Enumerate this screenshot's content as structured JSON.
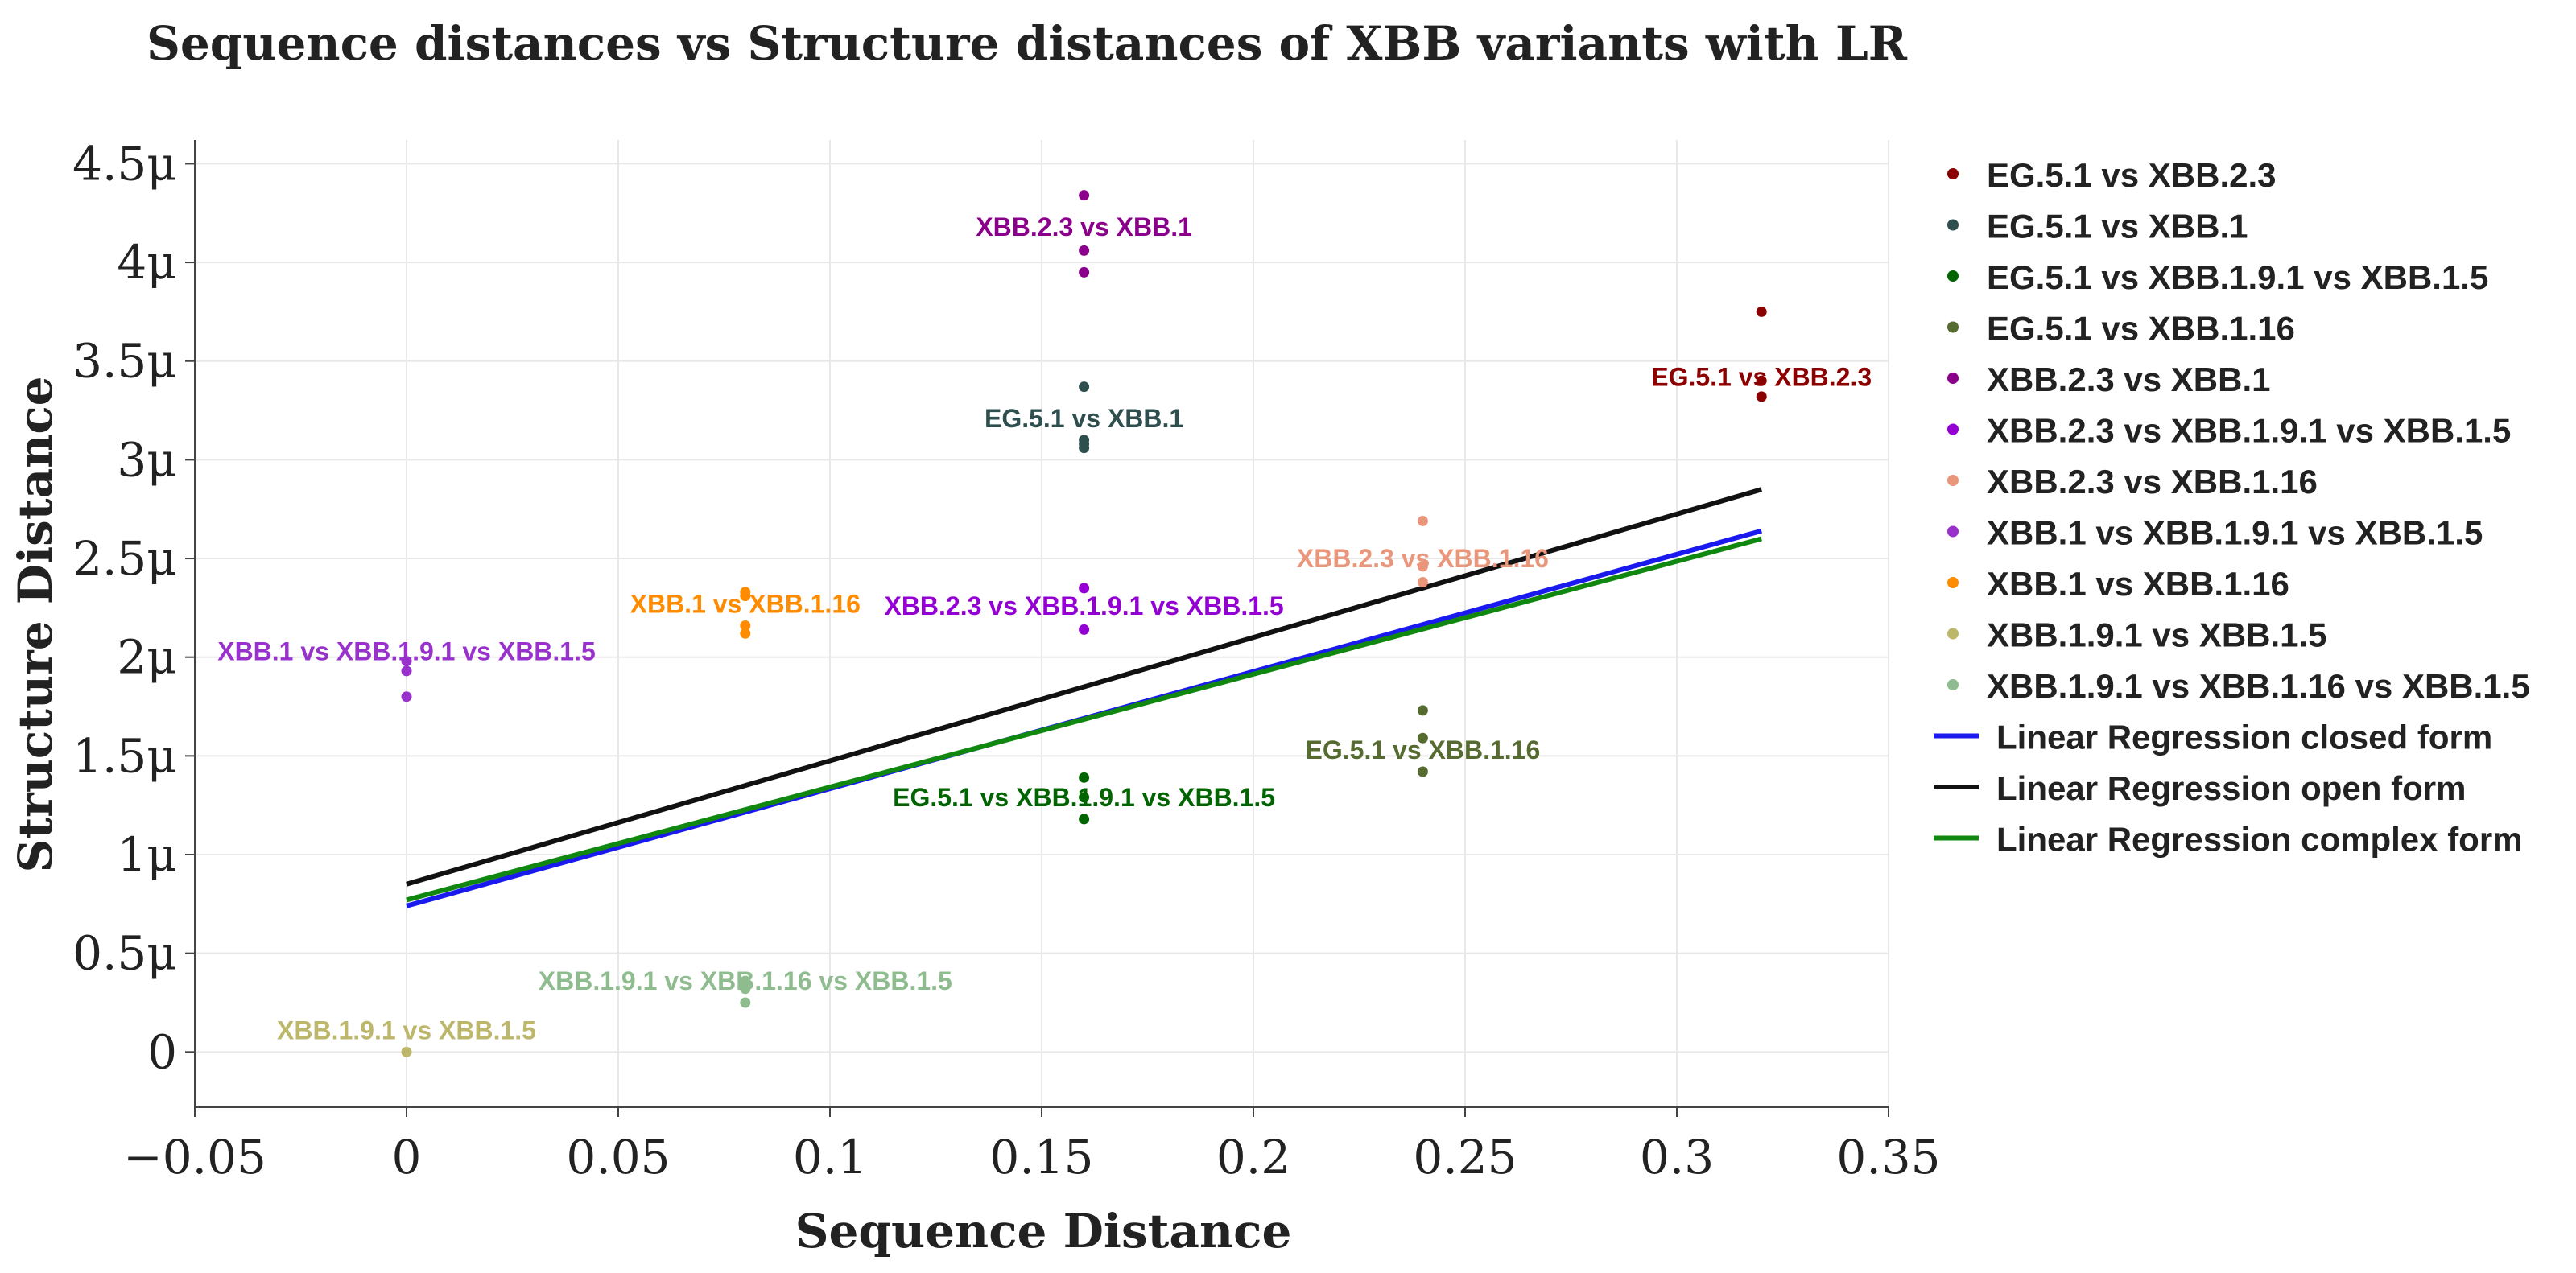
{
  "chart_data": {
    "type": "scatter",
    "title": "Sequence distances vs Structure distances of XBB variants with LR",
    "xlabel": "Sequence Distance",
    "ylabel": "Structure Distance",
    "xlim": [
      -0.05,
      0.35
    ],
    "ylim": [
      -0.28,
      4.62
    ],
    "xticks": [
      -0.05,
      0,
      0.05,
      0.1,
      0.15,
      0.2,
      0.25,
      0.3,
      0.35
    ],
    "xtick_labels": [
      "−0.05",
      "0",
      "0.05",
      "0.1",
      "0.15",
      "0.2",
      "0.25",
      "0.3",
      "0.35"
    ],
    "yticks": [
      0,
      0.5,
      1,
      1.5,
      2,
      2.5,
      3,
      3.5,
      4,
      4.5
    ],
    "ytick_labels": [
      "0",
      "0.5μ",
      "1μ",
      "1.5μ",
      "2μ",
      "2.5μ",
      "3μ",
      "3.5μ",
      "4μ",
      "4.5μ"
    ],
    "grid": true,
    "legend_position": "right",
    "series": [
      {
        "name": "EG.5.1 vs XBB.2.3",
        "color": "#8b0000",
        "x": [
          0.32,
          0.32,
          0.32
        ],
        "y": [
          3.75,
          3.4,
          3.32
        ],
        "annotation": "EG.5.1 vs XBB.2.3",
        "annotation_at": [
          0.32,
          3.42
        ]
      },
      {
        "name": "EG.5.1 vs XBB.1",
        "color": "#2f4f4f",
        "x": [
          0.16,
          0.16,
          0.16,
          0.16
        ],
        "y": [
          3.37,
          3.1,
          3.08,
          3.06
        ],
        "annotation": "EG.5.1 vs XBB.1",
        "annotation_at": [
          0.16,
          3.21
        ]
      },
      {
        "name": "EG.5.1 vs XBB.1.9.1 vs XBB.1.5",
        "color": "#006400",
        "x": [
          0.16,
          0.16,
          0.16
        ],
        "y": [
          1.39,
          1.29,
          1.18
        ],
        "annotation": "EG.5.1 vs XBB.1.9.1 vs XBB.1.5",
        "annotation_at": [
          0.16,
          1.29
        ]
      },
      {
        "name": "EG.5.1 vs XBB.1.16",
        "color": "#556b2f",
        "x": [
          0.24,
          0.24,
          0.24
        ],
        "y": [
          1.73,
          1.59,
          1.42
        ],
        "annotation": "EG.5.1 vs XBB.1.16",
        "annotation_at": [
          0.24,
          1.53
        ]
      },
      {
        "name": "XBB.2.3 vs XBB.1",
        "color": "#8b008b",
        "x": [
          0.16,
          0.16,
          0.16
        ],
        "y": [
          4.34,
          4.06,
          3.95
        ],
        "annotation": "XBB.2.3 vs XBB.1",
        "annotation_at": [
          0.16,
          4.18
        ]
      },
      {
        "name": "XBB.2.3 vs XBB.1.9.1 vs XBB.1.5",
        "color": "#9400d3",
        "x": [
          0.16,
          0.16
        ],
        "y": [
          2.35,
          2.14
        ],
        "annotation": "XBB.2.3 vs XBB.1.9.1 vs XBB.1.5",
        "annotation_at": [
          0.16,
          2.26
        ]
      },
      {
        "name": "XBB.2.3 vs XBB.1.16",
        "color": "#e9967a",
        "x": [
          0.24,
          0.24,
          0.24
        ],
        "y": [
          2.69,
          2.46,
          2.38
        ],
        "annotation": "XBB.2.3 vs XBB.1.16",
        "annotation_at": [
          0.24,
          2.5
        ]
      },
      {
        "name": "XBB.1 vs XBB.1.9.1 vs XBB.1.5",
        "color": "#9932cc",
        "x": [
          0,
          0,
          0
        ],
        "y": [
          1.98,
          1.93,
          1.8
        ],
        "annotation": "XBB.1 vs XBB.1.9.1 vs XBB.1.5",
        "annotation_at": [
          0,
          2.03
        ]
      },
      {
        "name": "XBB.1 vs XBB.1.16",
        "color": "#ff8c00",
        "x": [
          0.08,
          0.08,
          0.08,
          0.08
        ],
        "y": [
          2.33,
          2.31,
          2.16,
          2.12
        ],
        "annotation": "XBB.1 vs XBB.1.16",
        "annotation_at": [
          0.08,
          2.27
        ]
      },
      {
        "name": "XBB.1.9.1 vs XBB.1.5",
        "color": "#bdb76b",
        "x": [
          0
        ],
        "y": [
          0
        ],
        "annotation": "XBB.1.9.1 vs XBB.1.5",
        "annotation_at": [
          0,
          0.11
        ]
      },
      {
        "name": "XBB.1.9.1 vs XBB.1.16 vs XBB.1.5",
        "color": "#8fbc8f",
        "x": [
          0.08,
          0.08,
          0.08,
          0.08
        ],
        "y": [
          0.36,
          0.34,
          0.32,
          0.25
        ],
        "annotation": "XBB.1.9.1 vs XBB.1.16 vs XBB.1.5",
        "annotation_at": [
          0.08,
          0.36
        ]
      }
    ],
    "lines": [
      {
        "name": "Linear Regression closed form",
        "color": "#1a1aee",
        "x": [
          0,
          0.32
        ],
        "y": [
          0.74,
          2.64
        ]
      },
      {
        "name": "Linear Regression open form",
        "color": "#111111",
        "x": [
          0,
          0.32
        ],
        "y": [
          0.85,
          2.85
        ]
      },
      {
        "name": "Linear Regression complex form",
        "color": "#108810",
        "x": [
          0,
          0.32
        ],
        "y": [
          0.77,
          2.6
        ]
      }
    ]
  }
}
